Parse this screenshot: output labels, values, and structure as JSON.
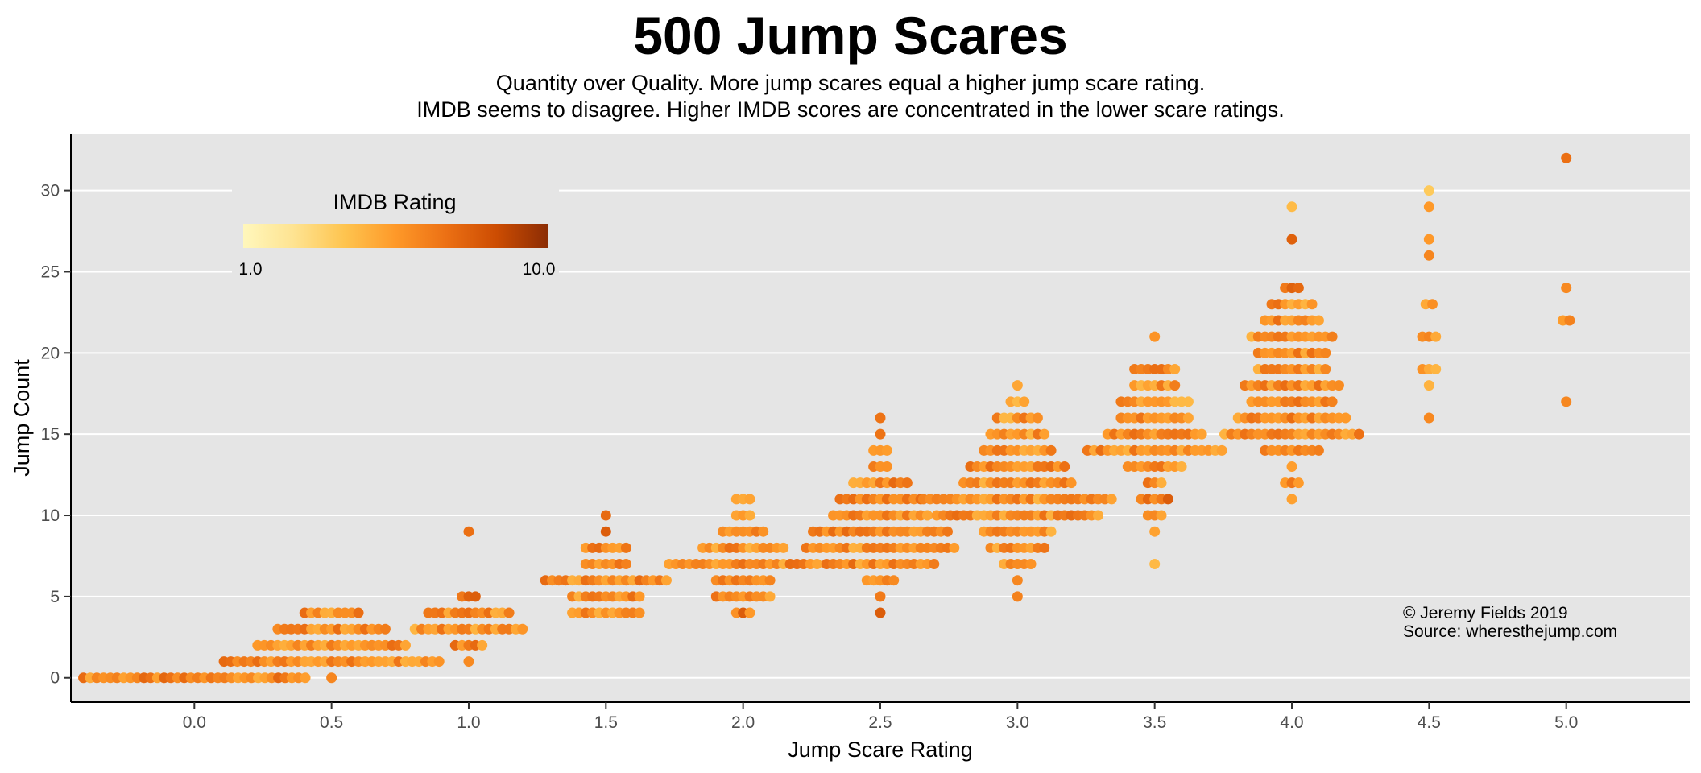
{
  "chart_data": {
    "type": "scatter",
    "title": "500 Jump Scares",
    "subtitle": [
      "Quantity over Quality. More jump scares equal a higher jump scare rating.",
      "IMDB seems to disagree. Higher IMDB scores are concentrated in the lower scare ratings."
    ],
    "xlabel": "Jump Scare Rating",
    "ylabel": "Jump Count",
    "xlim": [
      -0.45,
      5.45
    ],
    "ylim": [
      -1.5,
      33.5
    ],
    "xticks": [
      "0.0",
      "0.5",
      "1.0",
      "1.5",
      "2.0",
      "2.5",
      "3.0",
      "3.5",
      "4.0",
      "4.5",
      "5.0"
    ],
    "yticks": [
      "0",
      "5",
      "10",
      "15",
      "20",
      "25",
      "30"
    ],
    "grid": true,
    "legend": {
      "title": "IMDB Rating",
      "min_label": "1.0",
      "max_label": "10.0",
      "min": 1,
      "max": 10,
      "placement": "top-left",
      "colors": [
        "#fff7bc",
        "#fee391",
        "#fec44f",
        "#fe9929",
        "#ec7014",
        "#cc4c02",
        "#8c2d04"
      ]
    },
    "annotation": [
      "© Jeremy Fields 2019",
      "Source: wheresthejump.com"
    ],
    "groups": [
      {
        "x": 0.0,
        "rows": [
          [
            0,
            34,
            6.1
          ]
        ]
      },
      {
        "x": 0.5,
        "rows": [
          [
            0,
            1,
            6.0
          ],
          [
            1,
            33,
            6.0
          ],
          [
            2,
            23,
            6.0
          ],
          [
            3,
            17,
            6.0
          ],
          [
            4,
            9,
            6.0
          ]
        ]
      },
      {
        "x": 1.0,
        "rows": [
          [
            1,
            1,
            6.3
          ],
          [
            2,
            5,
            6.0
          ],
          [
            3,
            17,
            5.8
          ],
          [
            4,
            13,
            6.0
          ],
          [
            5,
            3,
            6.6
          ],
          [
            9,
            1,
            7.0
          ]
        ]
      },
      {
        "x": 1.5,
        "rows": [
          [
            4,
            11,
            5.8
          ],
          [
            5,
            11,
            5.9
          ],
          [
            6,
            19,
            6.0
          ],
          [
            7,
            7,
            6.0
          ],
          [
            8,
            7,
            6.0
          ],
          [
            9,
            1,
            7.0
          ],
          [
            10,
            1,
            7.0
          ]
        ]
      },
      {
        "x": 2.0,
        "rows": [
          [
            4,
            3,
            6.5
          ],
          [
            5,
            9,
            6.0
          ],
          [
            6,
            9,
            6.0
          ],
          [
            7,
            23,
            5.9
          ],
          [
            8,
            13,
            5.8
          ],
          [
            9,
            7,
            5.9
          ],
          [
            10,
            3,
            5.8
          ],
          [
            11,
            3,
            5.5
          ]
        ]
      },
      {
        "x": 2.5,
        "rows": [
          [
            4,
            1,
            7.0
          ],
          [
            5,
            1,
            6.5
          ],
          [
            6,
            5,
            6.0
          ],
          [
            7,
            17,
            6.0
          ],
          [
            8,
            23,
            5.7
          ],
          [
            9,
            21,
            6.0
          ],
          [
            10,
            15,
            6.0
          ],
          [
            11,
            13,
            6.0
          ],
          [
            12,
            9,
            6.0
          ],
          [
            13,
            3,
            6.5
          ],
          [
            14,
            3,
            6.2
          ],
          [
            15,
            1,
            6.5
          ],
          [
            16,
            1,
            6.8
          ]
        ]
      },
      {
        "x": 3.0,
        "rows": [
          [
            5,
            1,
            5.5
          ],
          [
            6,
            1,
            5.5
          ],
          [
            7,
            5,
            5.8
          ],
          [
            8,
            9,
            5.9
          ],
          [
            9,
            11,
            5.8
          ],
          [
            10,
            25,
            5.9
          ],
          [
            11,
            29,
            5.8
          ],
          [
            12,
            17,
            5.8
          ],
          [
            13,
            15,
            5.9
          ],
          [
            14,
            11,
            5.8
          ],
          [
            15,
            9,
            5.7
          ],
          [
            16,
            7,
            5.6
          ],
          [
            17,
            3,
            5.5
          ],
          [
            18,
            1,
            5.5
          ]
        ]
      },
      {
        "x": 3.5,
        "rows": [
          [
            7,
            1,
            5.5
          ],
          [
            9,
            1,
            6.5
          ],
          [
            10,
            3,
            5.5
          ],
          [
            11,
            5,
            6.5
          ],
          [
            12,
            3,
            6.0
          ],
          [
            13,
            9,
            5.7
          ],
          [
            14,
            21,
            5.8
          ],
          [
            15,
            15,
            5.8
          ],
          [
            16,
            11,
            5.8
          ],
          [
            17,
            11,
            5.6
          ],
          [
            18,
            7,
            5.6
          ],
          [
            19,
            7,
            5.8
          ],
          [
            21,
            1,
            5.0
          ]
        ]
      },
      {
        "x": 4.0,
        "rows": [
          [
            11,
            1,
            6.3
          ],
          [
            12,
            3,
            6.0
          ],
          [
            13,
            1,
            6.3
          ],
          [
            14,
            9,
            6.0
          ],
          [
            15,
            21,
            5.8
          ],
          [
            16,
            17,
            5.9
          ],
          [
            17,
            13,
            5.8
          ],
          [
            18,
            15,
            5.9
          ],
          [
            19,
            11,
            5.9
          ],
          [
            20,
            11,
            5.9
          ],
          [
            21,
            13,
            5.8
          ],
          [
            22,
            9,
            6.0
          ],
          [
            23,
            7,
            5.8
          ],
          [
            24,
            3,
            6.4
          ],
          [
            27,
            1,
            7.0
          ],
          [
            29,
            1,
            4.5
          ]
        ]
      },
      {
        "x": 4.5,
        "rows": [
          [
            16,
            1,
            5.8
          ],
          [
            18,
            1,
            5.8
          ],
          [
            19,
            3,
            5.6
          ],
          [
            21,
            3,
            6.0
          ],
          [
            23,
            2,
            6.0
          ],
          [
            26,
            1,
            6.0
          ],
          [
            27,
            1,
            5.8
          ],
          [
            29,
            1,
            5.5
          ],
          [
            30,
            1,
            5.0
          ]
        ]
      },
      {
        "x": 5.0,
        "rows": [
          [
            17,
            1,
            6.3
          ],
          [
            22,
            2,
            6.6
          ],
          [
            24,
            1,
            7.0
          ],
          [
            32,
            1,
            5.8
          ]
        ]
      }
    ]
  }
}
